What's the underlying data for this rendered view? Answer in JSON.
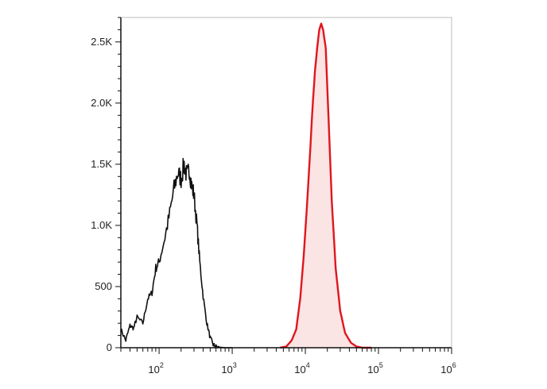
{
  "chart_data": {
    "type": "area",
    "title": "",
    "xlabel": "",
    "ylabel": "",
    "x_scale": "log",
    "xlim": [
      30,
      1000000
    ],
    "ylim": [
      0,
      2700
    ],
    "grid": false,
    "legend": "none",
    "y_ticks": [
      {
        "value": 0,
        "label": "0"
      },
      {
        "value": 500,
        "label": "500"
      },
      {
        "value": 1000,
        "label": "1.0K"
      },
      {
        "value": 1500,
        "label": "1.5K"
      },
      {
        "value": 2000,
        "label": "2.0K"
      },
      {
        "value": 2500,
        "label": "2.5K"
      }
    ],
    "x_ticks": [
      {
        "value": 100,
        "base": "10",
        "exp": "2"
      },
      {
        "value": 1000,
        "base": "10",
        "exp": "3"
      },
      {
        "value": 10000,
        "base": "10",
        "exp": "4"
      },
      {
        "value": 100000,
        "base": "10",
        "exp": "5"
      },
      {
        "value": 1000000,
        "base": "10",
        "exp": "6"
      }
    ],
    "series": [
      {
        "color": "#111111",
        "fill": "none",
        "x": [
          30,
          35,
          40,
          45,
          50,
          60,
          70,
          80,
          90,
          100,
          120,
          140,
          160,
          180,
          200,
          220,
          240,
          260,
          280,
          300,
          330,
          360,
          400,
          450,
          500,
          550,
          600,
          700,
          800,
          1000
        ],
        "y": [
          150,
          60,
          180,
          160,
          250,
          200,
          400,
          450,
          650,
          700,
          900,
          1100,
          1300,
          1430,
          1380,
          1500,
          1400,
          1460,
          1320,
          1250,
          1000,
          700,
          420,
          200,
          80,
          25,
          8,
          3,
          0,
          0
        ]
      },
      {
        "color": "#e0161e",
        "fill": "#fbe4e4",
        "x": [
          4500,
          5500,
          6500,
          7500,
          8500,
          9500,
          10500,
          11500,
          12500,
          13500,
          14500,
          15500,
          16500,
          17500,
          19000,
          21000,
          23000,
          26000,
          30000,
          35000,
          42000,
          50000,
          60000,
          80000
        ],
        "y": [
          0,
          10,
          60,
          150,
          400,
          750,
          1150,
          1550,
          1950,
          2250,
          2450,
          2600,
          2650,
          2600,
          2450,
          1800,
          1200,
          650,
          300,
          120,
          40,
          10,
          0,
          0
        ]
      }
    ]
  }
}
